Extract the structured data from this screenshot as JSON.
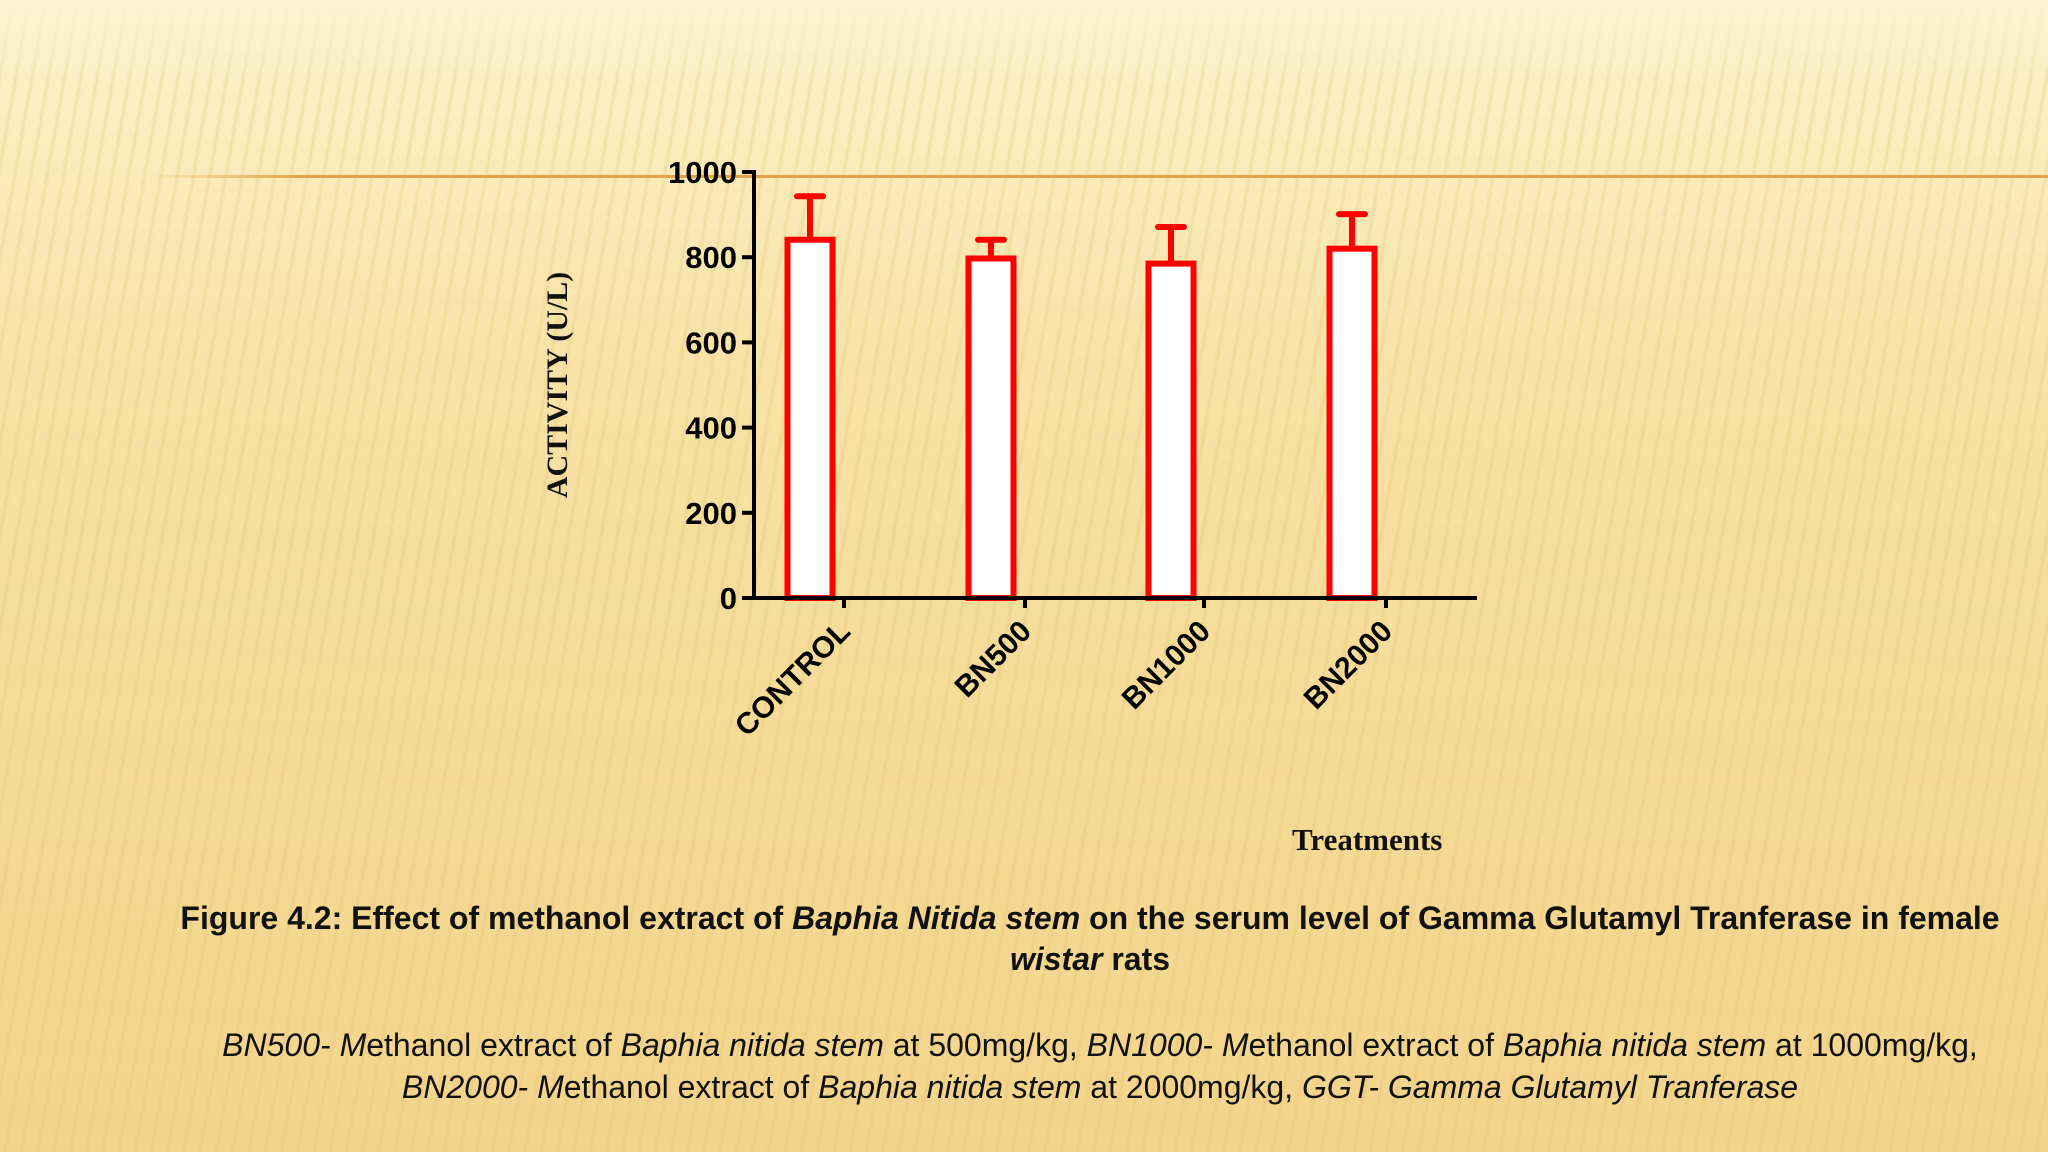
{
  "chart_data": {
    "type": "bar",
    "title": "",
    "categories": [
      "CONTROL",
      "BN500",
      "BN1000",
      "BN2000"
    ],
    "values": [
      841,
      797,
      785,
      820
    ],
    "error_upper": [
      943,
      841,
      871,
      901
    ],
    "error_plus": [
      102,
      44,
      86,
      81
    ],
    "xlabel": "Treatments",
    "ylabel": "ACTIVITY (U/L)",
    "ylim": [
      0,
      1000
    ],
    "yticks": [
      0,
      200,
      400,
      600,
      800,
      1000
    ],
    "grid": false,
    "legend": null,
    "bar_fill": "#ffffff",
    "bar_edge": "#ff0000"
  },
  "caption": {
    "prefix": "Figure 4.2: Effect of methanol extract of ",
    "italic1": "Baphia Nitida stem",
    "mid": " on the serum level of Gamma Glutamyl Tranferase in female ",
    "italic2": "wistar",
    "suffix": " rats"
  },
  "abbreviations": {
    "a1": "BN500- M",
    "a2": "ethanol extract of ",
    "a3": "Baphia nitida stem",
    "a4": " at 500mg/kg, ",
    "a5": "BN1000- M",
    "a6": "ethanol extract of ",
    "a7": "Baphia nitida stem",
    "a8": " at 1000mg/kg, ",
    "a9": "BN2000- M",
    "a10": "ethanol extract of ",
    "a11": "Baphia nitida stem",
    "a12": " at 2000mg/kg, ",
    "a13": "GGT- Gamma Glutamyl Tranferase"
  }
}
